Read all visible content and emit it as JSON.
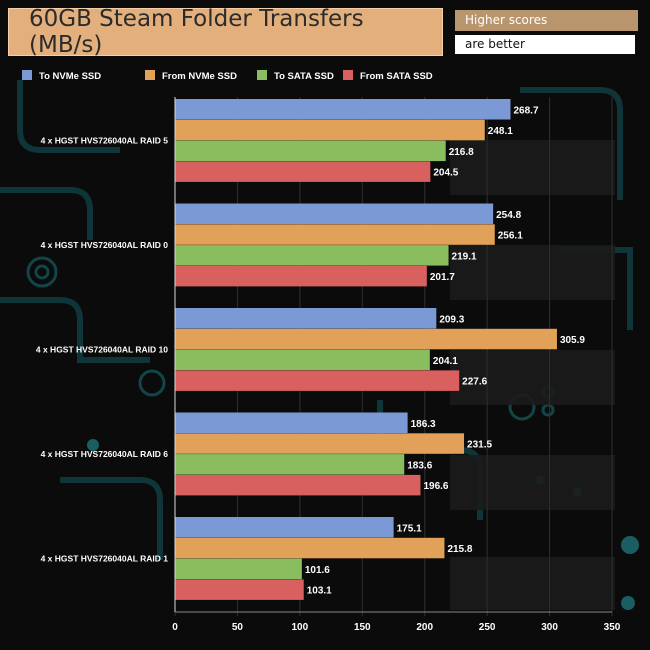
{
  "header": {
    "title": "60GB Steam Folder Transfers (MB/s)",
    "note_line1": "Higher scores",
    "note_line2": "are better"
  },
  "colors": {
    "to_nvme": "#7b99d4",
    "from_nvme": "#e2a159",
    "to_sata": "#8abd5e",
    "from_sata": "#d8605f"
  },
  "chart_data": {
    "type": "bar",
    "orientation": "horizontal",
    "title": "60GB Steam Folder Transfers (MB/s)",
    "categories": [
      "4 x HGST HVS726040AL RAID 5",
      "4 x HGST HVS726040AL RAID 0",
      "4 x HGST HVS726040AL RAID 10",
      "4 x HGST HVS726040AL RAID 6",
      "4 x HGST HVS726040AL RAID 1"
    ],
    "series": [
      {
        "name": "To NVMe SSD",
        "color": "#7b99d4",
        "values": [
          268.7,
          254.8,
          209.3,
          186.3,
          175.1
        ]
      },
      {
        "name": "From NVMe SSD",
        "color": "#e2a159",
        "values": [
          248.1,
          256.1,
          305.9,
          231.5,
          215.8
        ]
      },
      {
        "name": "To SATA SSD",
        "color": "#8abd5e",
        "values": [
          216.8,
          219.1,
          204.1,
          183.6,
          101.6
        ]
      },
      {
        "name": "From SATA SSD",
        "color": "#d8605f",
        "values": [
          204.5,
          201.7,
          227.6,
          196.6,
          103.1
        ]
      }
    ],
    "xlim": [
      0,
      350
    ],
    "xticks": [
      0,
      50,
      100,
      150,
      200,
      250,
      300,
      350
    ],
    "xlabel": "",
    "ylabel": "",
    "legend_position": "top",
    "grid": true
  }
}
